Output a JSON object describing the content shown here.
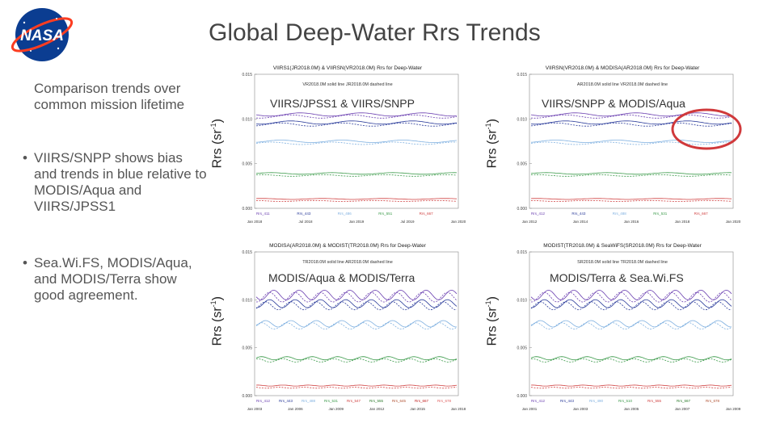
{
  "slide": {
    "title": "Global Deep-Water Rrs Trends",
    "logo_text": "NASA",
    "subtitle": "Comparison trends over common mission lifetime",
    "bullets": [
      "VIIRS/SNPP shows bias and trends in blue relative to MODIS/Aqua and VIIRS/JPSS1",
      "Sea.Wi.FS, MODIS/Aqua, and MODIS/Terra show good agreement."
    ],
    "ylabel": "Rrs (sr",
    "ylabel_sup": "-1",
    "ylabel_close": ")"
  },
  "panels": [
    {
      "header": "VIIRS1(JR2018.0M) & VIIRSN(VR2018.0M)  Rrs for Deep-Water",
      "legend_line": "VR2018.0M solid line   JR2018.0M dashed line",
      "overlay": "VIIRS/JPSS1 & VIIRS/SNPP",
      "yticks": [
        "0.015",
        "0.010",
        "0.005",
        "0.000"
      ],
      "band_labels": [
        "Rrs_411",
        "Rrs_443",
        "Rrs_486",
        "Rrs_551",
        "Rrs_667"
      ],
      "xticks": [
        "Jan 2018",
        "Jul 2018",
        "Jan 2019",
        "Jul 2019",
        "Jan 2020"
      ]
    },
    {
      "header": "VIIRSN(VR2018.0M) & MODISA(AR2018.0M)  Rrs for Deep-Water",
      "legend_line": "AR2018.0M solid line   VR2018.0M dashed line",
      "overlay": "VIIRS/SNPP & MODIS/Aqua",
      "yticks": [
        "0.015",
        "0.010",
        "0.005",
        "0.000"
      ],
      "band_labels": [
        "Rrs_412",
        "Rrs_443",
        "Rrs_488",
        "Rrs_531",
        "Rrs_667"
      ],
      "xticks": [
        "Jan 2012",
        "Jan 2014",
        "Jan 2016",
        "Jan 2018",
        "Jan 2020"
      ]
    },
    {
      "header": "MODISA(AR2018.0M) & MODIST(TR2018.0M)  Rrs for Deep-Water",
      "legend_line": "TR2018.0M solid line   AR2018.0M dashed line",
      "overlay": "MODIS/Aqua & MODIS/Terra",
      "yticks": [
        "0.015",
        "0.010",
        "0.005",
        "0.000"
      ],
      "band_labels": [
        "Rrs_412",
        "Rrs_443",
        "Rrs_488",
        "Rrs_531",
        "Rrs_547",
        "Rrs_555",
        "Rrs_645",
        "Rrs_667",
        "Rrs_678"
      ],
      "xticks": [
        "Jan 2003",
        "Jan 2006",
        "Jan 2009",
        "Jan 2012",
        "Jan 2015",
        "Jan 2018"
      ]
    },
    {
      "header": "MODIST(TR2018.0M) & SeaWiFS(SR2018.0M)  Rrs for Deep-Water",
      "legend_line": "SR2018.0M solid line   TR2018.0M dashed line",
      "overlay": "MODIS/Terra & Sea.Wi.FS",
      "yticks": [
        "0.015",
        "0.010",
        "0.005",
        "0.000"
      ],
      "band_labels": [
        "Rrs_412",
        "Rrs_443",
        "Rrs_490",
        "Rrs_510",
        "Rrs_555",
        "Rrs_667",
        "Rrs_678"
      ],
      "xticks": [
        "Jan 2001",
        "Jan 2003",
        "Jan 2005",
        "Jan 2007",
        "Jan 2009"
      ]
    }
  ],
  "colors": {
    "title": "#444444",
    "highlight_circle": "#d0393b",
    "purple": "#6a3fb0",
    "navy": "#2a3b9a",
    "lightblue": "#7fb0e0",
    "green": "#3b9a4a",
    "red": "#d04040"
  }
}
